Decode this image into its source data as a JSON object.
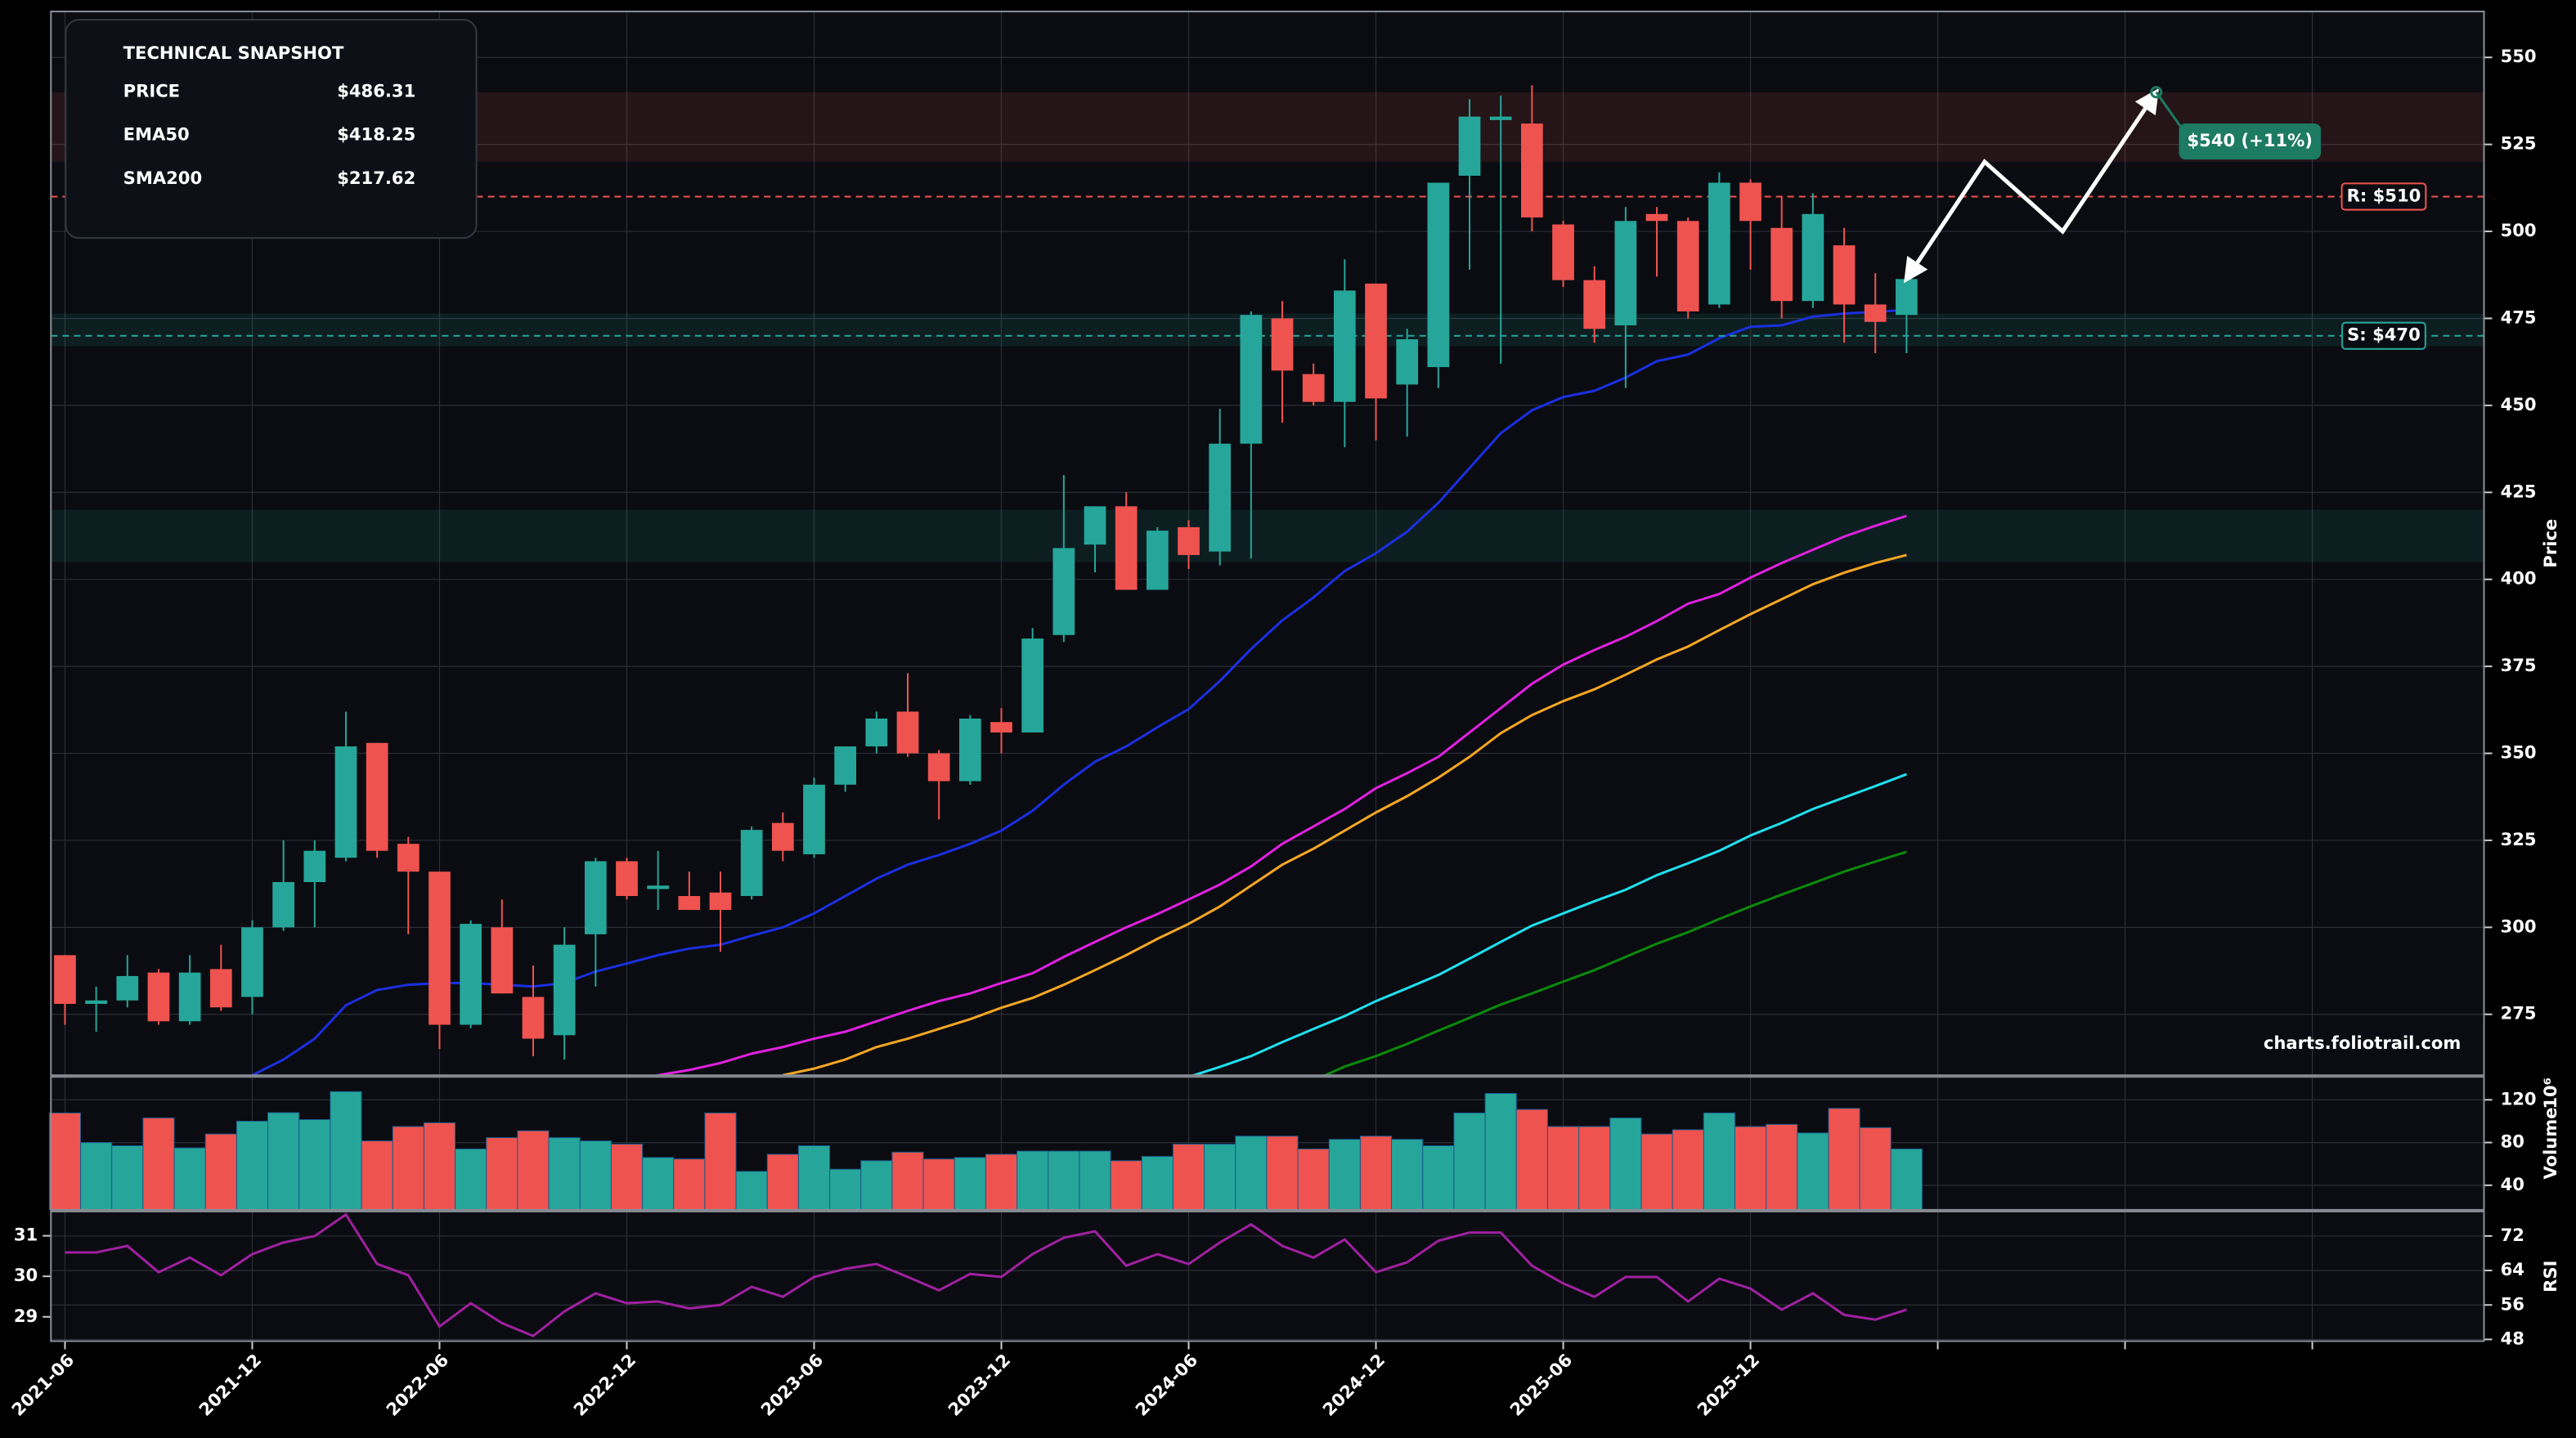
{
  "chart_data": [
    {
      "type": "candlestick",
      "ylabel": "Price",
      "xlim": [
        -0.45,
        77.5
      ],
      "ylim": [
        257.5,
        563.2
      ],
      "yticks": [
        275,
        300,
        325,
        350,
        375,
        400,
        425,
        450,
        475,
        500,
        525,
        550
      ],
      "grid": true,
      "up_color": "#26a69a",
      "down_color": "#ef5350",
      "open": [
        292,
        278,
        279,
        287,
        273,
        288,
        280,
        300,
        313,
        320,
        353,
        324,
        316,
        272,
        300,
        280,
        269,
        298,
        319,
        311,
        309,
        310,
        309,
        330,
        321,
        341,
        352,
        362,
        350,
        342,
        359,
        356,
        384,
        410,
        421,
        397,
        415,
        408,
        439,
        475,
        459,
        451,
        485,
        456,
        461,
        516,
        532,
        531,
        502,
        486,
        473,
        505,
        503,
        479,
        514,
        501,
        480,
        496,
        479,
        476
      ],
      "high": [
        292,
        283,
        292,
        288,
        292,
        295,
        302,
        325,
        325,
        362,
        353,
        326,
        316,
        302,
        308,
        289,
        300,
        320,
        320,
        322,
        316,
        316,
        329,
        333,
        343,
        352,
        362,
        373,
        351,
        361,
        363,
        386,
        430,
        421,
        425,
        415,
        417,
        449,
        477,
        480,
        462,
        492,
        485,
        472,
        514,
        538,
        539,
        542,
        503,
        490,
        507,
        507,
        504,
        517,
        515,
        510,
        511,
        501,
        488,
        487
      ],
      "low": [
        272,
        270,
        277,
        272,
        272,
        276,
        275,
        299,
        300,
        319,
        320,
        298,
        265,
        271,
        281,
        263,
        262,
        283,
        308,
        305,
        305,
        293,
        308,
        319,
        320,
        339,
        350,
        349,
        331,
        341,
        350,
        356,
        382,
        402,
        397,
        397,
        403,
        404,
        406,
        445,
        450,
        438,
        440,
        441,
        455,
        489,
        462,
        500,
        484,
        468,
        455,
        487,
        475,
        478,
        489,
        475,
        478,
        468,
        465,
        465
      ],
      "close": [
        278,
        279,
        286,
        273,
        287,
        277,
        300,
        313,
        322,
        352,
        322,
        316,
        272,
        301,
        281,
        268,
        295,
        319,
        309,
        312,
        305,
        305,
        328,
        322,
        341,
        352,
        360,
        350,
        342,
        360,
        356,
        383,
        409,
        421,
        397,
        414,
        407,
        439,
        476,
        460,
        451,
        483,
        452,
        469,
        514,
        533,
        533,
        504,
        486,
        472,
        503,
        503,
        477,
        514,
        503,
        480,
        505,
        479,
        474,
        486.31
      ],
      "lines": [
        {
          "color": "#1a2fe0",
          "values": [
            null,
            null,
            null,
            null,
            null,
            null,
            257.5,
            262,
            268,
            277.6,
            282,
            283.5,
            284,
            284,
            283.5,
            283,
            284,
            287.3,
            289.6,
            292,
            293.9,
            295,
            297.6,
            300,
            304,
            309,
            314,
            318,
            320.8,
            324,
            327.8,
            333.5,
            341,
            347.6,
            352,
            357.5,
            362.7,
            370.8,
            380,
            388.2,
            394.8,
            402.4,
            407.5,
            413.7,
            422,
            432,
            442,
            448.6,
            452.4,
            454.2,
            458,
            462.7,
            464.6,
            469.3,
            472.6,
            473,
            475.5,
            476.4,
            476.9,
            477.4
          ]
        },
        {
          "color": "#e020e0",
          "values": [
            null,
            null,
            null,
            null,
            null,
            null,
            null,
            null,
            null,
            null,
            null,
            null,
            null,
            null,
            null,
            null,
            null,
            null,
            null,
            257.5,
            259,
            261,
            263.7,
            265.6,
            268,
            270,
            273,
            276,
            278.8,
            281,
            284,
            286.8,
            291.5,
            295.8,
            300,
            303.8,
            308,
            312.3,
            317.5,
            324,
            329,
            334,
            340,
            344.3,
            349,
            356,
            363,
            370,
            375.5,
            379.7,
            383.5,
            388,
            393,
            395.8,
            400.5,
            404.7,
            408.5,
            412.3,
            415.4,
            418.25
          ]
        },
        {
          "color": "#f5a623",
          "values": [
            null,
            null,
            null,
            null,
            null,
            null,
            null,
            null,
            null,
            null,
            null,
            null,
            null,
            null,
            null,
            null,
            null,
            null,
            null,
            null,
            null,
            null,
            null,
            257.5,
            259.4,
            262,
            265.6,
            268,
            270.8,
            273.6,
            276.9,
            279.7,
            283.5,
            287.7,
            292,
            296.7,
            301,
            306,
            312,
            318,
            322.6,
            327.8,
            333,
            337.7,
            343,
            349,
            355.8,
            361,
            365,
            368.4,
            372.6,
            377,
            380.7,
            385.4,
            390,
            394.3,
            398.6,
            401.9,
            404.7,
            407
          ]
        },
        {
          "color": "#20e0f0",
          "values": [
            null,
            null,
            null,
            null,
            null,
            null,
            null,
            null,
            null,
            null,
            null,
            null,
            null,
            null,
            null,
            null,
            null,
            null,
            null,
            null,
            null,
            null,
            null,
            null,
            null,
            null,
            null,
            null,
            null,
            null,
            null,
            null,
            null,
            null,
            null,
            null,
            257,
            259.9,
            263,
            267,
            270.8,
            274.5,
            278.8,
            282.5,
            286.3,
            291,
            295.8,
            300.5,
            304,
            307.5,
            310.8,
            315,
            318.4,
            322,
            326.4,
            330,
            334,
            337.3,
            340.6,
            344
          ]
        },
        {
          "color": "#0a8a0a",
          "values": [
            null,
            null,
            null,
            null,
            null,
            null,
            null,
            null,
            null,
            null,
            null,
            null,
            null,
            null,
            null,
            null,
            null,
            null,
            null,
            null,
            null,
            null,
            null,
            null,
            null,
            null,
            null,
            null,
            null,
            null,
            null,
            null,
            null,
            null,
            null,
            null,
            null,
            null,
            null,
            null,
            256,
            260,
            263,
            266.5,
            270.3,
            274,
            277.8,
            281,
            284.4,
            287.7,
            291.5,
            295.3,
            298.6,
            302.4,
            306,
            309.4,
            312.7,
            316,
            318.9,
            321.7
          ]
        }
      ],
      "zones": [
        {
          "from": 520,
          "to": 540,
          "color": "#ef5350"
        },
        {
          "from": 467,
          "to": 476.4,
          "color": "#26a69a"
        },
        {
          "from": 405,
          "to": 420,
          "color": "#26a69a"
        }
      ],
      "levels": [
        {
          "value": 510,
          "label": "R: $510",
          "color": "#ef5350"
        },
        {
          "value": 470,
          "label": "S: $470",
          "color": "#26a69a"
        }
      ],
      "projection": {
        "x": [
          59,
          61.5,
          64,
          67
        ],
        "values": [
          486.31,
          520,
          500,
          540
        ],
        "label": "$540 (+11%)",
        "color": "#1d7a63"
      },
      "watermark": "charts.foliotrail.com",
      "snapshot": {
        "title": "TECHNICAL SNAPSHOT",
        "rows": [
          {
            "label": "PRICE",
            "value": "$486.31",
            "color": "#ffffff"
          },
          {
            "label": "EMA50",
            "value": "$418.25",
            "color": "#e040fb"
          },
          {
            "label": "SMA200",
            "value": "$217.62",
            "color": "#f0e020"
          }
        ]
      }
    },
    {
      "type": "bar",
      "ylabel": "Volume",
      "offset_label": "10⁶",
      "ylim": [
        17,
        141.5
      ],
      "yticks": [
        40,
        80,
        120
      ],
      "grid": true,
      "values": [
        107.7,
        80,
        77,
        103,
        75,
        88,
        100,
        108,
        101.5,
        127.7,
        81.5,
        95,
        98.5,
        74,
        84.6,
        91,
        84.6,
        81.5,
        78.5,
        66,
        64.6,
        107.7,
        53,
        69,
        77,
        55,
        63,
        71,
        64.6,
        66,
        69,
        72,
        72,
        72,
        63,
        67,
        78.5,
        78.5,
        86,
        86,
        74,
        83,
        86,
        83,
        77,
        107.7,
        126,
        111,
        95,
        95,
        103,
        88,
        92,
        107.7,
        95,
        97,
        89,
        112,
        94,
        74
      ]
    },
    {
      "type": "line",
      "ylabel": "RSI",
      "ylim": [
        28.4,
        31.6
      ],
      "yticks": [
        29,
        30,
        31
      ],
      "y2lim": [
        47.6,
        77.7
      ],
      "y2ticks": [
        48,
        56,
        64,
        72
      ],
      "grid": true,
      "xticks": [
        {
          "value": 0,
          "label": "2021-06"
        },
        {
          "value": 6,
          "label": "2021-12"
        },
        {
          "value": 12,
          "label": "2022-06"
        },
        {
          "value": 18,
          "label": "2022-12"
        },
        {
          "value": 24,
          "label": "2023-06"
        },
        {
          "value": 30,
          "label": "2023-12"
        },
        {
          "value": 36,
          "label": "2024-06"
        },
        {
          "value": 42,
          "label": "2024-12"
        },
        {
          "value": 48,
          "label": "2025-06"
        },
        {
          "value": 54,
          "label": "2025-12"
        },
        {
          "value": 60,
          "label": null
        },
        {
          "value": 66,
          "label": null
        },
        {
          "value": 72,
          "label": null
        }
      ],
      "series": [
        {
          "color": "#a020a0",
          "axis": "y2",
          "values": [
            68.2,
            68.2,
            69.7,
            63.6,
            67,
            62.9,
            67.8,
            70.5,
            72,
            77,
            65.5,
            62.9,
            51,
            56.4,
            51.8,
            48.8,
            54.5,
            58.7,
            56.4,
            56.8,
            55.2,
            56,
            60.2,
            57.9,
            62.5,
            64.4,
            65.5,
            62.5,
            59.4,
            63.2,
            62.5,
            67.8,
            71.6,
            73.1,
            65.1,
            67.8,
            65.5,
            70.5,
            74.7,
            69.7,
            67,
            71.2,
            63.6,
            65.9,
            70.9,
            72.8,
            72.8,
            65.1,
            61,
            57.9,
            62.5,
            62.5,
            56.8,
            62.1,
            59.8,
            54.9,
            58.7,
            53.7,
            52.6,
            54.9
          ]
        }
      ]
    }
  ]
}
